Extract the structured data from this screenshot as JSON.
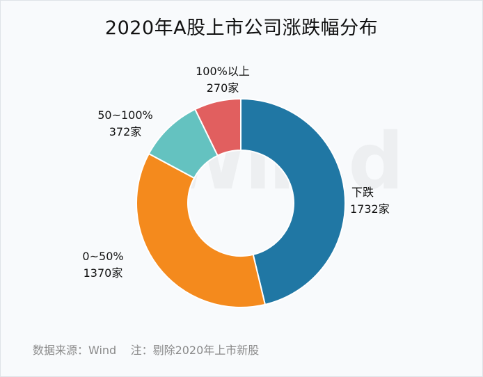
{
  "chart_data": {
    "type": "pie",
    "title": "2020年A股上市公司涨跌幅分布",
    "categories": [
      "下跌",
      "0~50%",
      "50~100%",
      "100%以上"
    ],
    "values": [
      1732,
      1370,
      372,
      270
    ],
    "value_labels": [
      "1732家",
      "1370家",
      "372家",
      "270家"
    ],
    "colors": [
      "#2077a4",
      "#f48a1d",
      "#64c2c0",
      "#e15f5f"
    ],
    "donut": true,
    "legend": "none"
  },
  "source_note": "数据来源：Wind",
  "remark": "注：剔除2020年上市新股",
  "watermark": "Win.d"
}
